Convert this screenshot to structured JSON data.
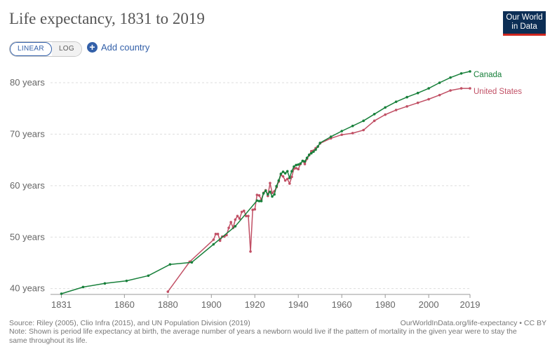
{
  "header": {
    "title": "Life expectancy, 1831 to 2019",
    "logo_line1": "Our World",
    "logo_line2": "in Data"
  },
  "controls": {
    "linear_label": "LINEAR",
    "log_label": "LOG",
    "active_scale": "linear",
    "add_country_label": "Add country",
    "add_icon": "plus-circle-icon"
  },
  "footer": {
    "source": "Source: Riley (2005), Clio Infra (2015), and UN Population Division (2019)",
    "url": "OurWorldInData.org/life-expectancy • CC BY",
    "note": "Note: Shown is period life expectancy at birth, the average number of years a newborn would live if the pattern of mortality in the given year were to stay the same throughout its life."
  },
  "chart_data": {
    "type": "line",
    "title": "Life expectancy, 1831 to 2019",
    "xlabel": "",
    "ylabel": "",
    "xlim": [
      1826,
      2019
    ],
    "ylim": [
      39,
      83
    ],
    "x_ticks": [
      1831,
      1860,
      1880,
      1900,
      1920,
      1940,
      1960,
      1980,
      2000,
      2019
    ],
    "x_tick_labels": [
      "1831",
      "1860",
      "1880",
      "1900",
      "1920",
      "1940",
      "1960",
      "1980",
      "2000",
      "2019"
    ],
    "y_ticks": [
      40,
      50,
      60,
      70,
      80
    ],
    "y_tick_labels": [
      "40 years",
      "50 years",
      "60 years",
      "70 years",
      "80 years"
    ],
    "grid": "horizontal dashed",
    "legend": "inline labels at right end of lines",
    "series": [
      {
        "name": "United States",
        "color": "#c15065",
        "x": [
          1880,
          1890,
          1901,
          1902,
          1903,
          1904,
          1905,
          1906,
          1907,
          1908,
          1909,
          1910,
          1911,
          1912,
          1913,
          1914,
          1915,
          1916,
          1917,
          1918,
          1919,
          1920,
          1921,
          1922,
          1923,
          1924,
          1925,
          1926,
          1927,
          1928,
          1929,
          1930,
          1931,
          1932,
          1933,
          1934,
          1935,
          1936,
          1937,
          1938,
          1939,
          1940,
          1941,
          1942,
          1943,
          1944,
          1945,
          1946,
          1947,
          1948,
          1949,
          1950,
          1955,
          1960,
          1965,
          1970,
          1975,
          1980,
          1985,
          1990,
          1995,
          2000,
          2005,
          2010,
          2015,
          2019
        ],
        "y": [
          39.4,
          45.2,
          49.5,
          50.6,
          50.6,
          49.3,
          50.1,
          50.1,
          50.4,
          51.8,
          52.9,
          51.8,
          53.4,
          54.1,
          53.6,
          54.9,
          55.1,
          54.1,
          54.1,
          47.2,
          55.3,
          55.4,
          58.2,
          58.1,
          57.3,
          58.6,
          59.1,
          58.0,
          60.5,
          58.6,
          58.9,
          59.7,
          60.8,
          62.1,
          61.8,
          61.0,
          61.3,
          60.4,
          61.7,
          63.3,
          63.4,
          63.2,
          64.2,
          64.8,
          64.2,
          65.2,
          65.9,
          66.7,
          66.8,
          67.3,
          67.6,
          68.2,
          69.2,
          69.9,
          70.2,
          70.8,
          72.6,
          73.8,
          74.7,
          75.4,
          76.1,
          76.8,
          77.6,
          78.5,
          78.9,
          78.9
        ]
      },
      {
        "name": "Canada",
        "color": "#18803b",
        "x": [
          1831,
          1841,
          1851,
          1861,
          1871,
          1881,
          1891,
          1901,
          1911,
          1921,
          1922,
          1923,
          1924,
          1925,
          1926,
          1927,
          1928,
          1929,
          1930,
          1931,
          1932,
          1933,
          1934,
          1935,
          1936,
          1937,
          1938,
          1939,
          1940,
          1941,
          1942,
          1943,
          1944,
          1945,
          1946,
          1947,
          1948,
          1949,
          1950,
          1955,
          1960,
          1965,
          1970,
          1975,
          1980,
          1985,
          1990,
          1995,
          2000,
          2005,
          2010,
          2015,
          2019
        ],
        "y": [
          39.0,
          40.3,
          41.0,
          41.5,
          42.5,
          44.7,
          45.1,
          48.6,
          52.1,
          57.1,
          57.0,
          57.0,
          58.5,
          59.0,
          58.3,
          58.8,
          57.9,
          58.3,
          59.9,
          61.0,
          62.3,
          62.7,
          62.4,
          62.8,
          61.5,
          62.8,
          63.7,
          64.0,
          64.1,
          64.3,
          64.8,
          64.7,
          65.4,
          66.0,
          66.3,
          66.6,
          67.0,
          67.6,
          68.3,
          69.5,
          70.6,
          71.6,
          72.6,
          73.9,
          75.2,
          76.3,
          77.2,
          78.0,
          78.9,
          80.0,
          81.0,
          81.8,
          82.2
        ]
      }
    ]
  }
}
